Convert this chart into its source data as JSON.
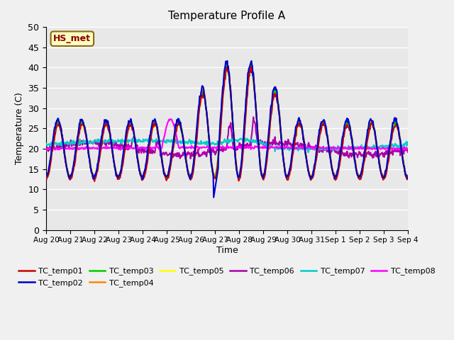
{
  "title": "Temperature Profile A",
  "xlabel": "Time",
  "ylabel": "Temperature (C)",
  "ylim": [
    0,
    50
  ],
  "yticks": [
    0,
    5,
    10,
    15,
    20,
    25,
    30,
    35,
    40,
    45,
    50
  ],
  "xtick_labels": [
    "Aug 20",
    "Aug 21",
    "Aug 22",
    "Aug 23",
    "Aug 24",
    "Aug 25",
    "Aug 26",
    "Aug 27",
    "Aug 28",
    "Aug 29",
    "Aug 30",
    "Aug 31",
    "Sep 1",
    "Sep 2",
    "Sep 3",
    "Sep 4"
  ],
  "annotation": "HS_met",
  "series_colors": {
    "TC_temp01": "#cc0000",
    "TC_temp02": "#0000cc",
    "TC_temp03": "#00cc00",
    "TC_temp04": "#ff8800",
    "TC_temp05": "#ffff00",
    "TC_temp06": "#aa00aa",
    "TC_temp07": "#00cccc",
    "TC_temp08": "#ff00ff"
  },
  "series_linewidths": {
    "TC_temp01": 1.5,
    "TC_temp02": 1.5,
    "TC_temp03": 1.5,
    "TC_temp04": 1.5,
    "TC_temp05": 1.5,
    "TC_temp06": 1.5,
    "TC_temp07": 1.5,
    "TC_temp08": 1.5
  },
  "bg_color": "#e8e8e8",
  "fig_bg_color": "#f0f0f0",
  "grid_color": "#ffffff"
}
